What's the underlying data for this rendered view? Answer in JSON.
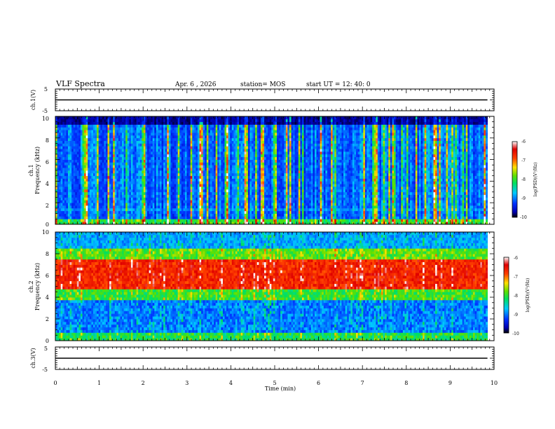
{
  "header": {
    "title": "VLF Spectra",
    "date": "Apr. 6 , 2026",
    "station": "station= MOS",
    "start_ut": "start UT =  12: 40: 0"
  },
  "chart_data": [
    {
      "type": "line",
      "ylabel": "ch.1(V)",
      "ylim": [
        -5,
        5
      ],
      "yticks": [
        "5",
        "-5"
      ],
      "xlim": [
        0,
        10
      ],
      "level": 0
    },
    {
      "type": "heatmap",
      "ylabel_ch": "ch.1",
      "ylabel": "Frequency (kHz)",
      "ylim": [
        0,
        10
      ],
      "yticks": [
        "0",
        "2",
        "4",
        "6",
        "8",
        "10"
      ],
      "xlim": [
        0,
        10
      ],
      "data_end_min": 9.85,
      "colorbar": {
        "label": "log(PSD)(V²/Hz)",
        "range": [
          -10,
          -6
        ],
        "ticks": [
          "-6",
          "-7",
          "-8",
          "-9",
          "-10"
        ]
      }
    },
    {
      "type": "heatmap",
      "ylabel_ch": "ch.2",
      "ylabel": "Frequency (kHz)",
      "ylim": [
        0,
        10
      ],
      "yticks": [
        "0",
        "2",
        "4",
        "6",
        "8",
        "10"
      ],
      "xlim": [
        0,
        10
      ],
      "data_end_min": 9.85,
      "colorbar": {
        "label": "log(PSD)(V²/Hz)",
        "range": [
          -10,
          -6
        ],
        "ticks": [
          "-6",
          "-7",
          "-8",
          "-9",
          "-10"
        ]
      }
    },
    {
      "type": "line",
      "ylabel": "ch.3(V)",
      "ylim": [
        -5,
        5
      ],
      "yticks": [
        "5",
        "-5"
      ],
      "xlim": [
        0,
        10
      ],
      "level": 0
    }
  ],
  "xaxis": {
    "label": "Time (min)",
    "ticks": [
      "0",
      "1",
      "2",
      "3",
      "4",
      "5",
      "6",
      "7",
      "8",
      "9",
      "10"
    ]
  }
}
